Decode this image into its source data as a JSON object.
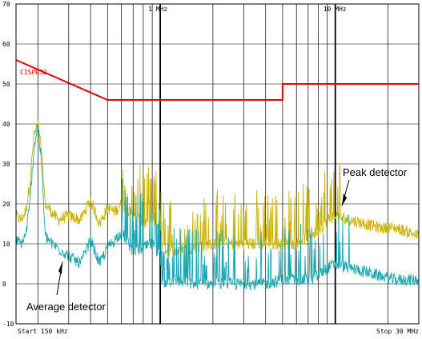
{
  "chart_data": {
    "type": "line",
    "title": "",
    "xlabel": "",
    "ylabel": "",
    "x_scale": "log",
    "x_unit": "MHz",
    "xlim": [
      0.15,
      30
    ],
    "ylim": [
      -10,
      70
    ],
    "grid": true,
    "y_ticks": [
      "70",
      "60",
      "50",
      "40",
      "30",
      "20",
      "10",
      "0",
      "-10"
    ],
    "x_tick_labels": [
      {
        "x": 1,
        "label": "1 MHz"
      },
      {
        "x": 10,
        "label": "10 MHz"
      }
    ],
    "start_label": "Start 150 kHz",
    "stop_label": "Stop 30 MHz",
    "limit_line": {
      "name": "CISPR32",
      "color": "#e00000",
      "points": [
        [
          0.15,
          56
        ],
        [
          0.5,
          46
        ],
        [
          5,
          46
        ],
        [
          5,
          50
        ],
        [
          30,
          50
        ]
      ]
    },
    "series": [
      {
        "name": "Peak detector",
        "color": "#c8b400",
        "points": [
          [
            0.15,
            17
          ],
          [
            0.16,
            16
          ],
          [
            0.17,
            18
          ],
          [
            0.18,
            25
          ],
          [
            0.19,
            37
          ],
          [
            0.2,
            40
          ],
          [
            0.21,
            33
          ],
          [
            0.22,
            20
          ],
          [
            0.24,
            18
          ],
          [
            0.26,
            16
          ],
          [
            0.3,
            17
          ],
          [
            0.35,
            16
          ],
          [
            0.4,
            21
          ],
          [
            0.45,
            15
          ],
          [
            0.5,
            19
          ],
          [
            0.55,
            18
          ],
          [
            0.6,
            20
          ],
          [
            0.7,
            17
          ],
          [
            0.8,
            15
          ],
          [
            0.9,
            16
          ],
          [
            1.0,
            14
          ],
          [
            1.02,
            9
          ],
          [
            1.2,
            8
          ],
          [
            1.5,
            9
          ],
          [
            2,
            10
          ],
          [
            3,
            10
          ],
          [
            4,
            10
          ],
          [
            5,
            10
          ],
          [
            6,
            10
          ],
          [
            7,
            12
          ],
          [
            8,
            13
          ],
          [
            9,
            16
          ],
          [
            10,
            17
          ],
          [
            12,
            16
          ],
          [
            15,
            15
          ],
          [
            18,
            14
          ],
          [
            22,
            14
          ],
          [
            26,
            13
          ],
          [
            30,
            12
          ]
        ]
      },
      {
        "name": "Average detector",
        "color": "#1aa8b0",
        "points": [
          [
            0.15,
            11
          ],
          [
            0.16,
            10
          ],
          [
            0.17,
            12
          ],
          [
            0.18,
            20
          ],
          [
            0.19,
            34
          ],
          [
            0.2,
            40
          ],
          [
            0.21,
            30
          ],
          [
            0.22,
            12
          ],
          [
            0.24,
            10
          ],
          [
            0.26,
            9
          ],
          [
            0.3,
            7
          ],
          [
            0.35,
            5
          ],
          [
            0.4,
            11
          ],
          [
            0.45,
            5
          ],
          [
            0.5,
            9
          ],
          [
            0.55,
            11
          ],
          [
            0.6,
            13
          ],
          [
            0.7,
            8
          ],
          [
            0.8,
            9
          ],
          [
            0.9,
            10
          ],
          [
            1.0,
            7
          ],
          [
            1.02,
            0
          ],
          [
            1.2,
            1
          ],
          [
            1.5,
            0
          ],
          [
            2,
            0
          ],
          [
            3,
            0
          ],
          [
            4,
            0
          ],
          [
            5,
            1
          ],
          [
            6,
            1
          ],
          [
            7,
            1
          ],
          [
            8,
            2
          ],
          [
            9,
            4
          ],
          [
            10,
            5
          ],
          [
            12,
            4
          ],
          [
            15,
            3
          ],
          [
            18,
            2
          ],
          [
            22,
            1
          ],
          [
            26,
            1
          ],
          [
            30,
            1
          ]
        ]
      }
    ],
    "annotations": [
      {
        "text": "Peak detector",
        "series": "Peak detector"
      },
      {
        "text": "Average detector",
        "series": "Average detector"
      }
    ]
  }
}
